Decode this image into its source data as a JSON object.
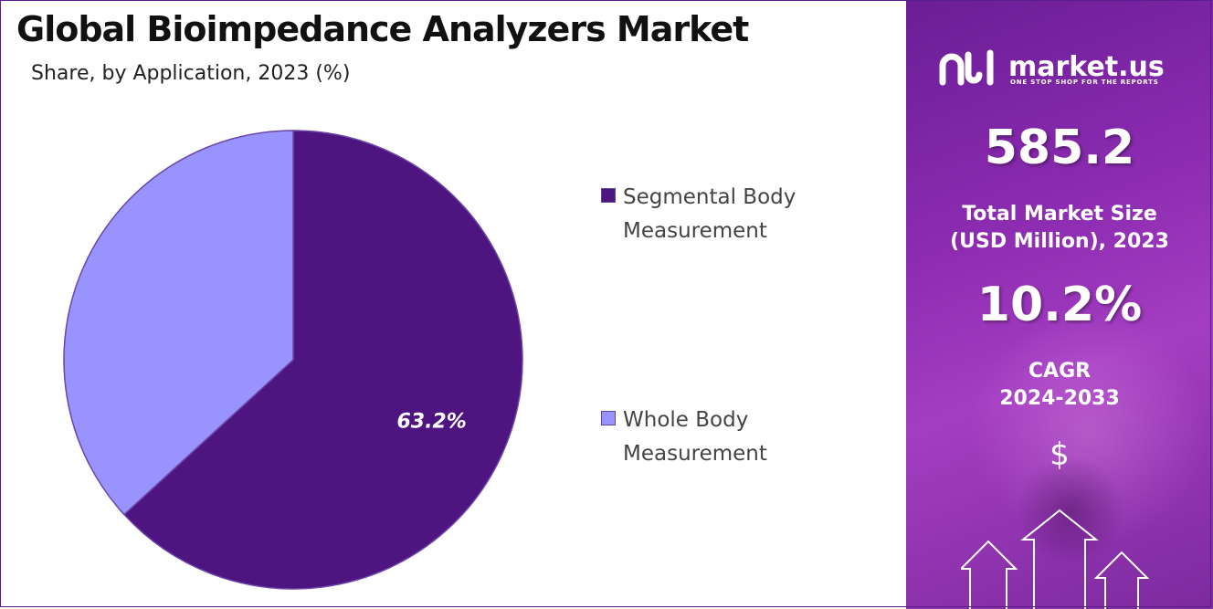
{
  "header": {
    "title": "Global Bioimpedance Analyzers Market",
    "subtitle": "Share, by Application, 2023 (%)"
  },
  "chart_data": {
    "type": "pie",
    "title": "Global Bioimpedance Analyzers Market",
    "subtitle": "Share, by Application, 2023 (%)",
    "categories": [
      "Segmental Body Measurement",
      "Whole Body Measurement"
    ],
    "values": [
      63.2,
      36.8
    ],
    "data_labels": [
      "63.2%",
      ""
    ],
    "colors": [
      "#4e1581",
      "#9994fd"
    ],
    "legend_position": "right",
    "start_angle": "12 o'clock, clockwise"
  },
  "legend": {
    "items": [
      {
        "label": "Segmental Body Measurement",
        "color": "#4e1581"
      },
      {
        "label": "Whole Body Measurement",
        "color": "#9994fd"
      }
    ]
  },
  "sidebar": {
    "brand": "market.us",
    "tagline": "ONE STOP SHOP FOR THE REPORTS",
    "market_size_value": "585.2",
    "market_size_label_line1": "Total Market Size",
    "market_size_label_line2": "(USD Million), 2023",
    "cagr_value": "10.2%",
    "cagr_label_line1": "CAGR",
    "cagr_label_line2": "2024-2033",
    "currency_symbol": "$",
    "icons": [
      "market-us-logo-icon",
      "growth-arrows-icon"
    ]
  }
}
